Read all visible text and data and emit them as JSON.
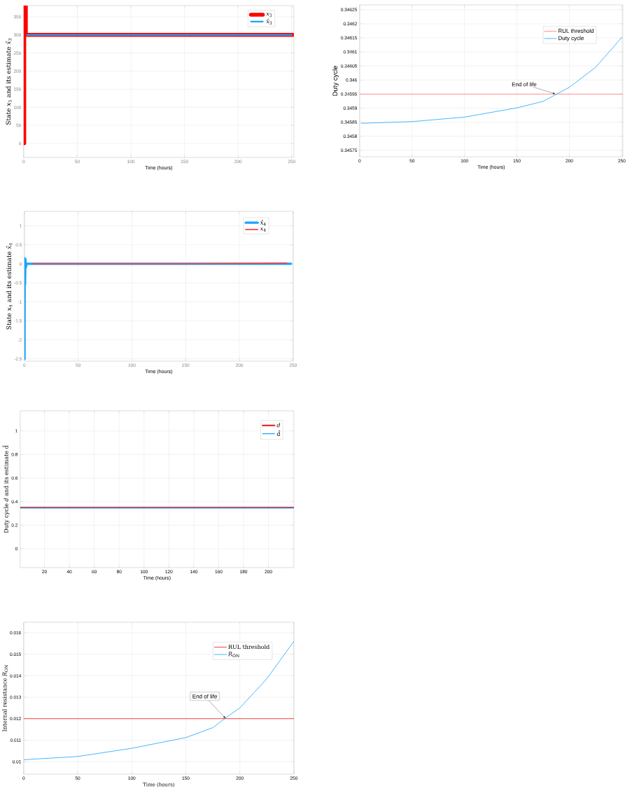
{
  "chart_data": [
    {
      "type": "line",
      "xlabel": "Time (hours)",
      "ylabel": "State *x*$_{3}$ and its estimate *x̂*$_{3}$",
      "xlim": [
        0,
        252
      ],
      "ylim": [
        -39,
        381
      ],
      "xticks": [
        0,
        50,
        100,
        150,
        200,
        250
      ],
      "yticks": [
        0,
        50,
        100,
        150,
        200,
        250,
        300,
        350
      ],
      "grid": true,
      "legend": "top right",
      "series": [
        {
          "name": "*x*$_{3}$",
          "color": "#ff0000",
          "x": [
            0.5,
            0.5,
            2,
            2,
            252
          ],
          "values": [
            0,
            378,
            378,
            300,
            300
          ]
        },
        {
          "name": "*x̂*$_{3}$",
          "color": "#1aa3ff",
          "x": [
            3,
            250
          ],
          "values": [
            300,
            300
          ]
        }
      ]
    },
    {
      "type": "line",
      "xlabel": "Time (hours)",
      "ylabel": "Duty cycle",
      "xlim": [
        0,
        251
      ],
      "ylim": [
        0.345727,
        0.346267
      ],
      "xticks": [
        0,
        50,
        100,
        150,
        200,
        250
      ],
      "yticks": [
        0.34575,
        0.3458,
        0.34585,
        0.3459,
        0.34595,
        0.346,
        0.34605,
        0.3461,
        0.34615,
        0.3462,
        0.34625
      ],
      "grid": true,
      "legend": "top right",
      "annotations": [
        {
          "text": "End of life",
          "x": 187,
          "y": 0.34595
        }
      ],
      "series": [
        {
          "name": "RUL threshold",
          "color": "#ff7070",
          "x": [
            0,
            251
          ],
          "values": [
            0.34595,
            0.34595
          ]
        },
        {
          "name": "Duty cycle",
          "color": "#1aa3ff",
          "x": [
            1.5,
            50,
            100,
            150,
            175,
            200,
            225,
            250
          ],
          "values": [
            0.345846,
            0.345852,
            0.345868,
            0.345901,
            0.345924,
            0.345974,
            0.346045,
            0.346151
          ]
        }
      ]
    },
    {
      "type": "line",
      "xlabel": "Time (hours)",
      "ylabel": "State *x*$_{4}$ and its estimate *x̂*$_{4}$",
      "xlim": [
        0,
        250
      ],
      "ylim": [
        -2.56,
        1.38
      ],
      "xticks": [
        0,
        50,
        100,
        150,
        200,
        250
      ],
      "yticks": [
        -2.5,
        -2,
        -1.5,
        -1,
        -0.5,
        0,
        0.5,
        1
      ],
      "grid": true,
      "legend": "top right",
      "series": [
        {
          "name": "*x*$_{4}$",
          "color": "#ff4040",
          "x": [
            8,
            150,
            200,
            244
          ],
          "values": [
            0,
            0,
            0.01,
            0.02
          ]
        },
        {
          "name": "*x̂*$_{4}$",
          "color": "#1aa3ff",
          "x": [
            0.15,
            0.3,
            0.6,
            1,
            1.3,
            2,
            248
          ],
          "values": [
            -2.5,
            0.15,
            -0.55,
            0.12,
            -0.1,
            0,
            0
          ]
        }
      ]
    },
    {
      "type": "line",
      "xlabel": "Time (hours)",
      "ylabel": "Duty cycle *d* and its estimate d̂",
      "xlim": [
        0.5,
        220.4
      ],
      "ylim": [
        -0.16,
        1.17
      ],
      "xticks": [
        20,
        40,
        60,
        80,
        100,
        120,
        140,
        160,
        180,
        200
      ],
      "yticks": [
        0,
        0.2,
        0.4,
        0.6,
        0.8,
        1
      ],
      "grid": true,
      "legend": "top right",
      "series": [
        {
          "name": "*d*",
          "color": "#e03030",
          "x": [
            0.5,
            220.4
          ],
          "values": [
            0.35,
            0.35
          ]
        },
        {
          "name": "d̂",
          "color": "#1aa3ff",
          "x": [
            0.5,
            220.4
          ],
          "values": [
            0.345,
            0.345
          ]
        }
      ]
    },
    {
      "type": "line",
      "xlabel": "Time (hours)",
      "ylabel": "Internal resistance *R*$_{ON}$",
      "xlim": [
        0,
        250
      ],
      "ylim": [
        0.00942,
        0.01649
      ],
      "xticks": [
        0,
        50,
        100,
        150,
        200,
        250
      ],
      "yticks": [
        0.01,
        0.011,
        0.012,
        0.013,
        0.014,
        0.015,
        0.016
      ],
      "grid": true,
      "legend": "top right",
      "annotations": [
        {
          "text": "End of life",
          "x": 187,
          "y": 0.012
        }
      ],
      "series": [
        {
          "name": "RUL threshold",
          "color": "#ff0000",
          "x": [
            0,
            250
          ],
          "values": [
            0.012,
            0.012
          ]
        },
        {
          "name": "*R*$_{ON}$",
          "color": "#1aa3ff",
          "x": [
            0,
            50,
            100,
            150,
            175,
            187,
            200,
            225,
            250
          ],
          "values": [
            0.01009,
            0.01024,
            0.01062,
            0.01112,
            0.01158,
            0.01204,
            0.0125,
            0.01386,
            0.0156
          ]
        }
      ]
    }
  ]
}
